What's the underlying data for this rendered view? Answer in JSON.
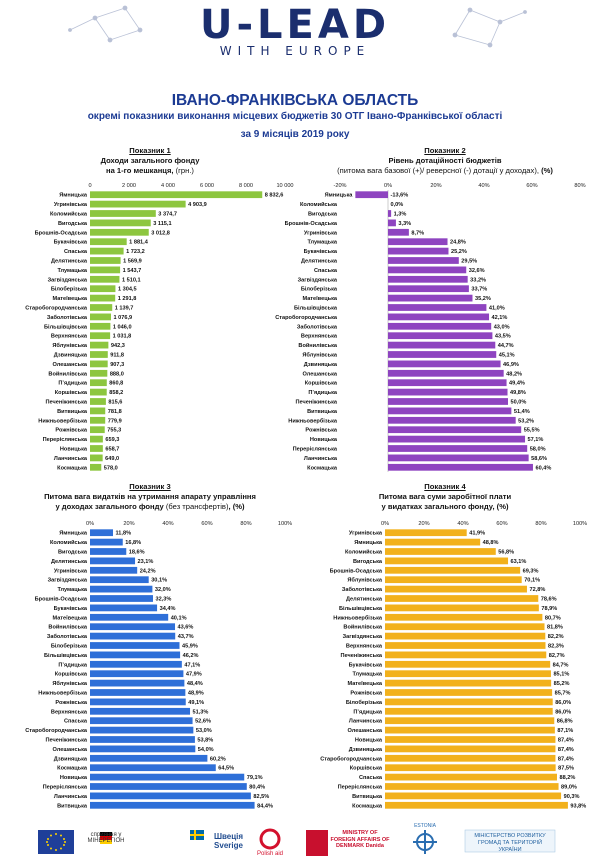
{
  "header": {
    "logo": "U-LEAD",
    "logo_sub": "WITH EUROPE"
  },
  "title": {
    "main": "ІВАНО-ФРАНКІВСЬКА ОБЛАСТЬ",
    "sub": "окремі показники виконання місцевих бюджетів 30 ОТГ Івано-Франківської області",
    "period": "за 9 місяців 2019 року"
  },
  "charts_text": {
    "c1": {
      "label": "Показник 1",
      "line1": "Доходи загального фонду",
      "line2a": "на 1-го мешканця, ",
      "line2b": "(грн.)"
    },
    "c2": {
      "label": "Показник 2",
      "line1": "Рівень дотаційності бюджетів",
      "line2a": "(питома вага базової (+)/ реверсної (-) дотації  у доходах), ",
      "line2b": "(%)"
    },
    "c3": {
      "line1": "Показник 3",
      "line2": "Питома вага видатків на утримання апарату управління",
      "line3a": "у доходах загального фонду ",
      "line3b": "(без трансфертів)",
      "line3c": ", (%)"
    },
    "c4": {
      "line1": "Показник 4",
      "line2": "Питома вага суми заробітної плати",
      "line3a": "у видатках загального фонду, ",
      "line3b": "(%)"
    }
  },
  "colors": {
    "c1": "#8dc63f",
    "c2": "#8e44c0",
    "c3": "#2e6fd8",
    "c4": "#f2b11c",
    "title": "#1b3a93"
  },
  "chart_data": [
    {
      "type": "bar",
      "orientation": "horizontal",
      "title": "Доходи загального фонду на 1-го мешканця, (грн.)",
      "xlim": [
        0,
        10000
      ],
      "ticks": [
        "0",
        "2 000",
        "4 000",
        "6 000",
        "8 000",
        "10 000"
      ],
      "categories": [
        "Ямницька",
        "Угринівська",
        "Коломийська",
        "Вигодська",
        "Брошнів-Осадська",
        "Букачівська",
        "Спаська",
        "Делятинська",
        "Тлумацька",
        "Загвіздянська",
        "Білоберізька",
        "Матеївецька",
        "Старобогородчанська",
        "Заболотівська",
        "Більшівцівська",
        "Верхнянська",
        "Яблунівська",
        "Дзвиняцька",
        "Олешанська",
        "Войнилівська",
        "Пʼядицька",
        "Коршівська",
        "Печеніжинська",
        "Витвицька",
        "Нижньовербізька",
        "Рожнівська",
        "Переріслянська",
        "Новицька",
        "Ланчинська",
        "Космацька"
      ],
      "values": [
        8832.6,
        4903.9,
        3374.7,
        3115.1,
        3012.8,
        1881.4,
        1723.2,
        1569.9,
        1543.7,
        1510.1,
        1304.5,
        1291.8,
        1139.7,
        1076.9,
        1046.0,
        1031.8,
        942.3,
        911.8,
        907.3,
        888.0,
        860.8,
        858.2,
        815.6,
        781.8,
        779.9,
        755.3,
        659.3,
        658.7,
        649.0,
        578.0
      ],
      "labels": [
        "8 832,6",
        "4 903,9",
        "3 374,7",
        "3 115,1",
        "3 012,8",
        "1 881,4",
        "1 723,2",
        "1 569,9",
        "1 543,7",
        "1 510,1",
        "1 304,5",
        "1 291,8",
        "1 139,7",
        "1 076,9",
        "1 046,0",
        "1 031,8",
        "942,3",
        "911,8",
        "907,3",
        "888,0",
        "860,8",
        "858,2",
        "815,6",
        "781,8",
        "779,9",
        "755,3",
        "659,3",
        "658,7",
        "649,0",
        "578,0"
      ]
    },
    {
      "type": "bar",
      "orientation": "horizontal",
      "title": "Рівень дотаційності бюджетів",
      "xlim": [
        -20,
        80
      ],
      "ticks": [
        "-20%",
        "0%",
        "20%",
        "40%",
        "60%",
        "80%"
      ],
      "categories": [
        "Ямницька",
        "Коломийська",
        "Вигодська",
        "Брошнів-Осадська",
        "Угринівська",
        "Тлумацька",
        "Букачівська",
        "Делятинська",
        "Спаська",
        "Загвіздянська",
        "Білоберізька",
        "Матеївецька",
        "Більшівцівська",
        "Старобогородчанська",
        "Заболотівська",
        "Верхнянська",
        "Войнилівська",
        "Яблунівська",
        "Дзвиняцька",
        "Олешанська",
        "Коршівська",
        "Пʼядицька",
        "Печеніжинська",
        "Витвицька",
        "Нижньовербізька",
        "Рожнівська",
        "Новицька",
        "Переріслянська",
        "Ланчинська",
        "Космацька"
      ],
      "values": [
        -13.6,
        0.0,
        1.3,
        3.3,
        8.7,
        24.8,
        25.2,
        29.5,
        32.6,
        33.2,
        33.7,
        35.2,
        41.0,
        42.1,
        43.0,
        43.5,
        44.7,
        45.1,
        46.9,
        48.2,
        49.4,
        49.8,
        50.0,
        51.4,
        53.2,
        55.5,
        57.1,
        58.0,
        58.6,
        60.4
      ],
      "labels": [
        "-13,6%",
        "0,0%",
        "1,3%",
        "3,3%",
        "8,7%",
        "24,8%",
        "25,2%",
        "29,5%",
        "32,6%",
        "33,2%",
        "33,7%",
        "35,2%",
        "41,0%",
        "42,1%",
        "43,0%",
        "43,5%",
        "44,7%",
        "45,1%",
        "46,9%",
        "48,2%",
        "49,4%",
        "49,8%",
        "50,0%",
        "51,4%",
        "53,2%",
        "55,5%",
        "57,1%",
        "58,0%",
        "58,6%",
        "60,4%"
      ]
    },
    {
      "type": "bar",
      "orientation": "horizontal",
      "title": "Питома вага видатків на утримання апарату управління у доходах загального фонду (без трансфертів), (%)",
      "xlim": [
        0,
        100
      ],
      "ticks": [
        "0%",
        "20%",
        "40%",
        "60%",
        "80%",
        "100%"
      ],
      "categories": [
        "Ямницька",
        "Коломийська",
        "Вигодська",
        "Делятинська",
        "Угринівська",
        "Загвіздянська",
        "Тлумацька",
        "Брошнів-Осадська",
        "Букачівська",
        "Матеївецька",
        "Войнилівська",
        "Заболотівська",
        "Білоберізька",
        "Більшівцівська",
        "Пʼядицька",
        "Коршівська",
        "Яблунівська",
        "Нижньовербізька",
        "Рожнівська",
        "Верхнянська",
        "Спаська",
        "Старобогородчанська",
        "Печеніжинська",
        "Олешанська",
        "Дзвиняцька",
        "Космацька",
        "Новицька",
        "Переріслянська",
        "Ланчинська",
        "Витвицька"
      ],
      "values": [
        11.8,
        16.8,
        18.6,
        23.1,
        24.2,
        30.1,
        32.0,
        32.3,
        34.4,
        40.1,
        43.6,
        43.7,
        45.9,
        46.2,
        47.1,
        47.9,
        48.4,
        48.9,
        49.1,
        51.3,
        52.6,
        53.0,
        53.8,
        54.0,
        60.2,
        64.5,
        79.1,
        80.4,
        82.5,
        84.4
      ],
      "labels": [
        "11,8%",
        "16,8%",
        "18,6%",
        "23,1%",
        "24,2%",
        "30,1%",
        "32,0%",
        "32,3%",
        "34,4%",
        "40,1%",
        "43,6%",
        "43,7%",
        "45,9%",
        "46,2%",
        "47,1%",
        "47,9%",
        "48,4%",
        "48,9%",
        "49,1%",
        "51,3%",
        "52,6%",
        "53,0%",
        "53,8%",
        "54,0%",
        "60,2%",
        "64,5%",
        "79,1%",
        "80,4%",
        "82,5%",
        "84,4%"
      ]
    },
    {
      "type": "bar",
      "orientation": "horizontal",
      "title": "Питома вага суми заробітної плати у видатках загального фонду, (%)",
      "xlim": [
        0,
        100
      ],
      "ticks": [
        "0%",
        "20%",
        "40%",
        "60%",
        "80%",
        "100%"
      ],
      "categories": [
        "Угринівська",
        "Ямницька",
        "Коломийська",
        "Вигодська",
        "Брошнів-Осадська",
        "Яблунівська",
        "Заболотівська",
        "Делятинська",
        "Більшівцівська",
        "Нижньовербізька",
        "Войнилівська",
        "Загвіздянська",
        "Верхнянська",
        "Печеніжинська",
        "Букачівська",
        "Тлумацька",
        "Матеївецька",
        "Рожнівська",
        "Білоберізька",
        "Пʼядицька",
        "Ланчинська",
        "Олешанська",
        "Новицька",
        "Дзвиняцька",
        "Старобогородчанська",
        "Коршівська",
        "Спаська",
        "Переріслянська",
        "Витвицька",
        "Космацька"
      ],
      "values": [
        41.9,
        48.8,
        56.8,
        63.1,
        69.3,
        70.1,
        72.8,
        78.6,
        78.9,
        80.7,
        81.8,
        82.2,
        82.3,
        82.7,
        84.7,
        85.1,
        85.2,
        85.7,
        86.0,
        86.0,
        86.8,
        87.1,
        87.4,
        87.4,
        87.4,
        87.5,
        88.2,
        89.0,
        90.3,
        93.8
      ],
      "labels": [
        "41,9%",
        "48,8%",
        "56,8%",
        "63,1%",
        "69,3%",
        "70,1%",
        "72,8%",
        "78,6%",
        "78,9%",
        "80,7%",
        "81,8%",
        "82,2%",
        "82,3%",
        "82,7%",
        "84,7%",
        "85,1%",
        "85,2%",
        "85,7%",
        "86,0%",
        "86,0%",
        "86,8%",
        "87,1%",
        "87,4%",
        "87,4%",
        "87,4%",
        "87,5%",
        "88,2%",
        "89,0%",
        "90,3%",
        "93,8%"
      ]
    }
  ],
  "footer": {
    "items": [
      "сприяння у МІНЕРЕГІОН",
      "Швеція Sverige",
      "Polish aid",
      "MINISTRY OF FOREIGN AFFAIRS OF DENMARK Danida",
      "ESTONIA",
      "МІНІСТЕРСТВО РОЗВИТКУ ГРОМАД ТА ТЕРИТОРІЙ УКРАЇНИ"
    ]
  }
}
